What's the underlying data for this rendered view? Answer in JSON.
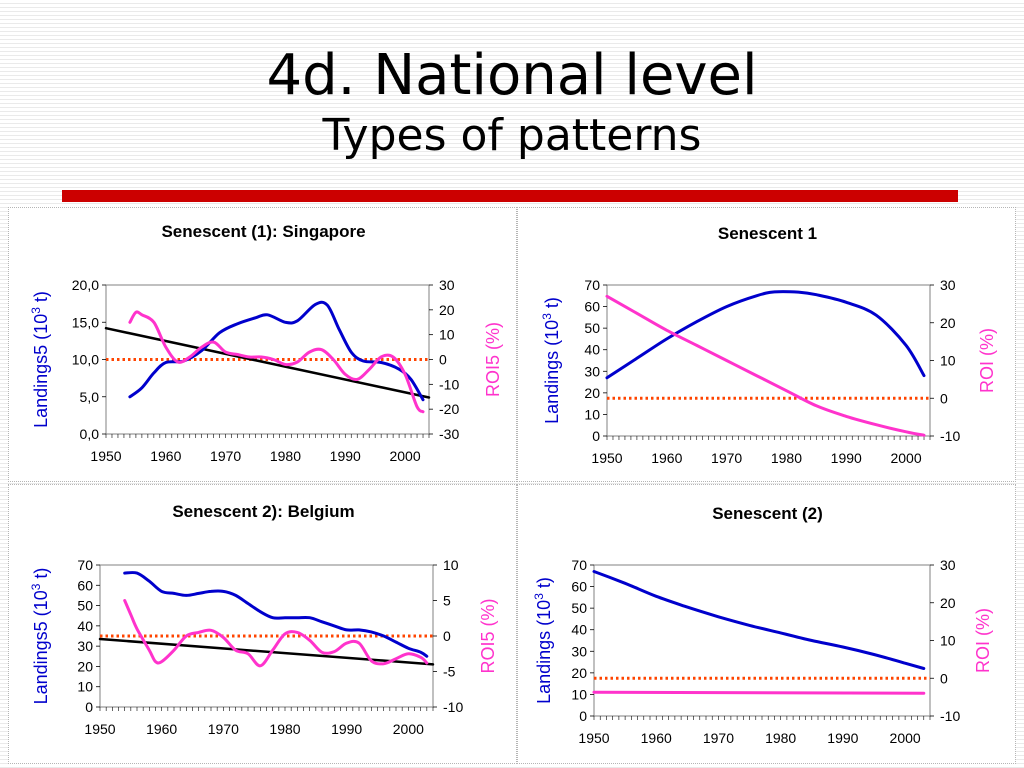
{
  "slide": {
    "title": "4d. National level",
    "subtitle": "Types of patterns",
    "accent_color": "#cc0000"
  },
  "colors": {
    "landings": "#0000cc",
    "roi": "#ff33cc",
    "trend": "#000000",
    "reference": "#ff4400"
  },
  "chart_data": [
    {
      "type": "line",
      "title": "Senescent (1): Singapore",
      "ylabel": "Landings5 (10^3 t)",
      "y2label": "ROI5 (%)",
      "x_ticks": [
        "1950",
        "1960",
        "1970",
        "1980",
        "1990",
        "2000"
      ],
      "xlim": [
        1950,
        2004
      ],
      "ylim": [
        0,
        20
      ],
      "y_ticks": [
        "20,0",
        "15,0",
        "10,0",
        "5,0",
        "0,0"
      ],
      "y2lim": [
        -30,
        30
      ],
      "y2_ticks": [
        "30",
        "20",
        "10",
        "0",
        "-10",
        "-20",
        "-30"
      ],
      "reference_line_y2": 0,
      "series": [
        {
          "name": "Landings5",
          "axis": "left",
          "style": "landings",
          "x": [
            1954,
            1956,
            1958,
            1960,
            1963,
            1966,
            1969,
            1972,
            1975,
            1977,
            1980,
            1982,
            1985,
            1987,
            1989,
            1991,
            1993,
            1996,
            1999,
            2001,
            2003
          ],
          "y": [
            5.0,
            6.2,
            8.2,
            9.6,
            9.8,
            11.2,
            13.6,
            14.8,
            15.6,
            16.0,
            15.0,
            15.2,
            17.4,
            17.3,
            14.0,
            11.0,
            9.8,
            9.6,
            8.7,
            7.3,
            4.6
          ]
        },
        {
          "name": "ROI5",
          "axis": "right",
          "style": "roi",
          "x": [
            1954,
            1955,
            1956,
            1958,
            1960,
            1962,
            1964,
            1966,
            1968,
            1970,
            1972,
            1974,
            1976,
            1978,
            1980,
            1982,
            1984,
            1986,
            1988,
            1990,
            1992,
            1994,
            1996,
            1998,
            2000,
            2002,
            2003
          ],
          "y": [
            15,
            19,
            18,
            15,
            5,
            -1,
            1,
            5,
            7,
            3,
            2,
            1,
            1,
            0,
            -2,
            -1,
            3,
            4,
            0,
            -6,
            -8,
            -4,
            1,
            1,
            -6,
            -19,
            -21
          ]
        },
        {
          "name": "Trend",
          "axis": "left",
          "style": "trend",
          "x": [
            1950,
            2004
          ],
          "y": [
            14.2,
            4.9
          ]
        }
      ]
    },
    {
      "type": "line",
      "title": "Senescent 1",
      "ylabel": "Landings (10^3 t)",
      "y2label": "ROI (%)",
      "x_ticks": [
        "1950",
        "1960",
        "1970",
        "1980",
        "1990",
        "2000"
      ],
      "xlim": [
        1950,
        2004
      ],
      "ylim": [
        0,
        70
      ],
      "y_ticks": [
        "70",
        "60",
        "50",
        "40",
        "30",
        "20",
        "10",
        "0"
      ],
      "y2lim": [
        -10,
        30
      ],
      "y2_ticks": [
        "30",
        "20",
        "10",
        "0",
        "-10"
      ],
      "reference_line_y2": 0,
      "series": [
        {
          "name": "Landings",
          "axis": "left",
          "style": "landings",
          "x": [
            1950,
            1955,
            1960,
            1965,
            1970,
            1975,
            1978,
            1982,
            1985,
            1990,
            1995,
            2000,
            2003
          ],
          "y": [
            27,
            36,
            45,
            53,
            60,
            65,
            66.8,
            66.7,
            65.5,
            62,
            56,
            42,
            28
          ]
        },
        {
          "name": "ROI",
          "axis": "right",
          "style": "roi",
          "x": [
            1950,
            1955,
            1960,
            1965,
            1970,
            1975,
            1980,
            1985,
            1990,
            1995,
            2000,
            2003
          ],
          "y": [
            27,
            22.5,
            18,
            14,
            10,
            6,
            2,
            -2,
            -4.8,
            -7,
            -8.9,
            -9.8
          ]
        }
      ]
    },
    {
      "type": "line",
      "title": "Senescent 2): Belgium",
      "ylabel": "Landings5 (10^3 t)",
      "y2label": "ROI5 (%)",
      "x_ticks": [
        "1950",
        "1960",
        "1970",
        "1980",
        "1990",
        "2000"
      ],
      "xlim": [
        1950,
        2004
      ],
      "ylim": [
        0,
        70
      ],
      "y_ticks": [
        "70",
        "60",
        "50",
        "40",
        "30",
        "20",
        "10",
        "0"
      ],
      "y2lim": [
        -10,
        10
      ],
      "y2_ticks": [
        "10",
        "5",
        "0",
        "-5",
        "-10"
      ],
      "reference_line_y2": 0,
      "series": [
        {
          "name": "Landings5",
          "axis": "left",
          "style": "landings",
          "x": [
            1954,
            1956,
            1958,
            1960,
            1962,
            1964,
            1966,
            1968,
            1970,
            1972,
            1974,
            1976,
            1978,
            1980,
            1982,
            1984,
            1986,
            1988,
            1990,
            1992,
            1994,
            1996,
            1998,
            2000,
            2002,
            2003
          ],
          "y": [
            66,
            66,
            62,
            57,
            56,
            55,
            56,
            57,
            57,
            55,
            51,
            47,
            44,
            44,
            44,
            44,
            42,
            40,
            38,
            38,
            37,
            35,
            32,
            29,
            27,
            25
          ]
        },
        {
          "name": "ROI5",
          "axis": "right",
          "style": "roi",
          "x": [
            1954,
            1955,
            1956,
            1958,
            1959,
            1960,
            1962,
            1964,
            1966,
            1968,
            1970,
            1972,
            1974,
            1976,
            1978,
            1980,
            1982,
            1984,
            1986,
            1988,
            1990,
            1992,
            1994,
            1996,
            1998,
            2000,
            2002,
            2003
          ],
          "y": [
            5,
            3,
            1,
            -2,
            -3.6,
            -3.6,
            -2,
            0,
            0.5,
            0.8,
            -0.2,
            -2,
            -2.5,
            -4.2,
            -2,
            0.3,
            0.5,
            -0.6,
            -2.3,
            -2.2,
            -1.0,
            -1.0,
            -3.5,
            -3.9,
            -3.2,
            -2.5,
            -3.0,
            -3.8
          ]
        },
        {
          "name": "Trend",
          "axis": "left",
          "style": "trend",
          "x": [
            1950,
            2004
          ],
          "y": [
            33.5,
            21
          ]
        }
      ]
    },
    {
      "type": "line",
      "title": "Senescent (2)",
      "ylabel": "Landings (10^3 t)",
      "y2label": "ROI (%)",
      "x_ticks": [
        "1950",
        "1960",
        "1970",
        "1980",
        "1990",
        "2000"
      ],
      "xlim": [
        1950,
        2004
      ],
      "ylim": [
        0,
        70
      ],
      "y_ticks": [
        "70",
        "60",
        "50",
        "40",
        "30",
        "20",
        "10",
        "0"
      ],
      "y2lim": [
        -10,
        30
      ],
      "y2_ticks": [
        "30",
        "20",
        "10",
        "0",
        "-10"
      ],
      "reference_line_y2": 0,
      "series": [
        {
          "name": "Landings",
          "axis": "left",
          "style": "landings",
          "x": [
            1950,
            1955,
            1960,
            1965,
            1970,
            1975,
            1980,
            1985,
            1990,
            1995,
            2000,
            2003
          ],
          "y": [
            67,
            61.5,
            55.5,
            50.5,
            46,
            42,
            38.5,
            35,
            32,
            28.5,
            24.5,
            22
          ]
        },
        {
          "name": "ROI",
          "axis": "right",
          "style": "roi",
          "x": [
            1950,
            2003
          ],
          "y": [
            -3.7,
            -4.0
          ]
        }
      ]
    }
  ]
}
